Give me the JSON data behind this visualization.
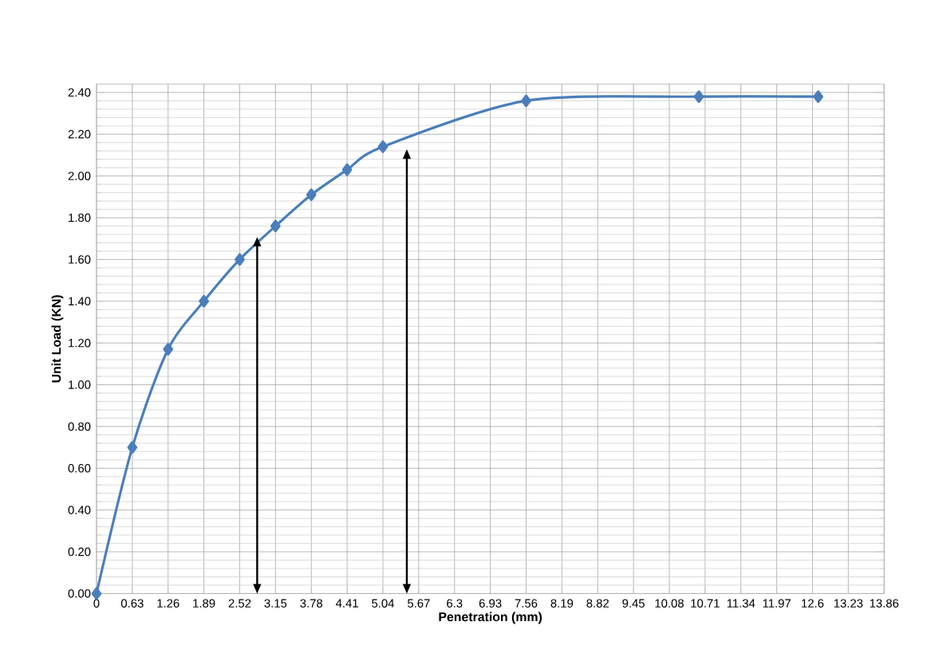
{
  "chart_data": {
    "type": "line",
    "xlabel": "Penetration (mm)",
    "ylabel": "Unit Load (KN)",
    "series": [
      {
        "color": "#4a7ebb",
        "marker": "diamond",
        "x": [
          0,
          0.63,
          1.26,
          1.89,
          2.52,
          3.15,
          3.78,
          4.41,
          5.04,
          7.56,
          10.6,
          12.7
        ],
        "values": [
          0,
          0.7,
          1.17,
          1.4,
          1.6,
          1.76,
          1.91,
          2.03,
          2.14,
          2.36,
          2.38,
          2.38
        ]
      }
    ],
    "xlim": [
      0,
      13.86
    ],
    "ylim": [
      0,
      2.44
    ],
    "xticks": [
      0,
      0.63,
      1.26,
      1.89,
      2.52,
      3.15,
      3.78,
      4.41,
      5.04,
      5.67,
      6.3,
      6.93,
      7.56,
      8.19,
      8.82,
      9.45,
      10.08,
      10.71,
      11.34,
      11.97,
      12.6,
      13.23,
      13.86
    ],
    "yticks": [
      {
        "value": 0,
        "label": "0.00"
      },
      {
        "value": 0.2,
        "label": "0.20"
      },
      {
        "value": 0.4,
        "label": "0.40"
      },
      {
        "value": 0.6,
        "label": "0.60"
      },
      {
        "value": 0.8,
        "label": "0.80"
      },
      {
        "value": 1.0,
        "label": "1.00"
      },
      {
        "value": 1.2,
        "label": "1.20"
      },
      {
        "value": 1.4,
        "label": "1.40"
      },
      {
        "value": 1.6,
        "label": "1.60"
      },
      {
        "value": 1.8,
        "label": "1.80"
      },
      {
        "value": 2.0,
        "label": "2.00"
      },
      {
        "value": 2.2,
        "label": "2.20"
      },
      {
        "value": 2.4,
        "label": "2.40"
      }
    ],
    "grid": true
  }
}
